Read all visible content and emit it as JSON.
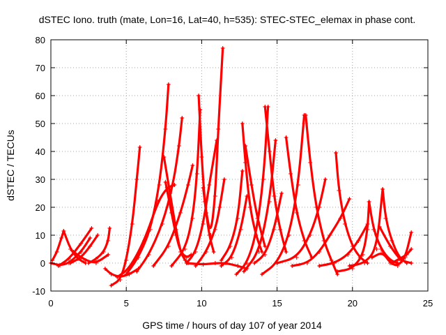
{
  "chart_data": {
    "type": "scatter",
    "title": "dSTEC Iono. truth (mate, Lon=16, Lat=40, h=535): STEC-STEC_elemax in phase cont.",
    "xlabel": "GPS time / hours of day 107 of year 2014",
    "ylabel": "dSTEC  / TECUs",
    "xlim": [
      0,
      25
    ],
    "ylim": [
      -10,
      80
    ],
    "xticks": [
      0,
      5,
      10,
      15,
      20,
      25
    ],
    "yticks": [
      -10,
      0,
      10,
      20,
      30,
      40,
      50,
      60,
      70,
      80
    ],
    "grid": true,
    "marker": "+",
    "color": "#ff0000",
    "series": [
      {
        "x": [
          0.1,
          0.4,
          0.7,
          0.85
        ],
        "y": [
          1,
          4,
          9,
          11.5
        ]
      },
      {
        "x": [
          0.85,
          1.3,
          1.8,
          2.3
        ],
        "y": [
          11.5,
          5,
          1.5,
          0
        ]
      },
      {
        "x": [
          0.0,
          0.6,
          1.2,
          2.0,
          2.6
        ],
        "y": [
          0,
          -0.8,
          0,
          4,
          9
        ]
      },
      {
        "x": [
          0.5,
          1.2,
          2.0,
          2.7
        ],
        "y": [
          -1,
          1.5,
          7,
          12.5
        ]
      },
      {
        "x": [
          1.3,
          2.0,
          2.6,
          3.1
        ],
        "y": [
          0,
          2,
          6,
          10
        ]
      },
      {
        "x": [
          1.5,
          2.3,
          3.0,
          3.8
        ],
        "y": [
          4,
          1,
          0,
          3
        ]
      },
      {
        "x": [
          2.5,
          3.0,
          3.5,
          3.8,
          3.9
        ],
        "y": [
          0,
          1.5,
          4,
          8,
          12.5
        ]
      },
      {
        "x": [
          3.6,
          4.0,
          4.6,
          5.2,
          5.8
        ],
        "y": [
          -2,
          -4,
          -5,
          -4,
          -2
        ]
      },
      {
        "x": [
          4.0,
          4.6,
          5.0,
          5.4,
          5.7,
          5.9
        ],
        "y": [
          -8,
          -6,
          1,
          14,
          30,
          41.5
        ]
      },
      {
        "x": [
          5.0,
          5.8,
          6.6,
          7.2,
          7.6,
          7.8
        ],
        "y": [
          -4,
          2,
          12,
          28,
          48,
          64
        ]
      },
      {
        "x": [
          4.4,
          5.2,
          6.2,
          7.1,
          7.7,
          8.2
        ],
        "y": [
          -5,
          -2,
          8,
          22,
          27,
          28
        ]
      },
      {
        "x": [
          5.7,
          6.5,
          7.4,
          8.1,
          8.5,
          8.7
        ],
        "y": [
          -3,
          3,
          14,
          28,
          42,
          52
        ]
      },
      {
        "x": [
          7.5,
          7.9,
          8.3,
          8.6,
          8.9,
          9.1
        ],
        "y": [
          38,
          25,
          12,
          4,
          1,
          0
        ]
      },
      {
        "x": [
          7.6,
          8.0,
          8.3,
          8.6,
          9.0,
          9.3
        ],
        "y": [
          29,
          18,
          10,
          4,
          2,
          3
        ]
      },
      {
        "x": [
          6.8,
          7.8,
          8.6,
          9.1,
          9.4
        ],
        "y": [
          -1,
          6,
          18,
          28,
          35
        ]
      },
      {
        "x": [
          8.0,
          8.9,
          9.4,
          9.7,
          9.9
        ],
        "y": [
          -1,
          5,
          16,
          32,
          55
        ]
      },
      {
        "x": [
          9.8,
          10.0,
          10.2,
          10.5,
          10.8
        ],
        "y": [
          60,
          38,
          22,
          10,
          4
        ]
      },
      {
        "x": [
          9.0,
          9.6,
          10.1,
          10.5,
          11.0
        ],
        "y": [
          0,
          4,
          14,
          28,
          44
        ]
      },
      {
        "x": [
          10.1,
          10.3,
          10.6,
          10.9,
          11.1,
          11.4
        ],
        "y": [
          27,
          18,
          10,
          24,
          48,
          77
        ]
      },
      {
        "x": [
          9.6,
          10.3,
          10.9,
          11.2,
          11.5
        ],
        "y": [
          -1,
          4,
          12,
          20,
          30
        ]
      },
      {
        "x": [
          9.0,
          10.1,
          10.9,
          11.6,
          12.4,
          13.0
        ],
        "y": [
          0,
          -0.5,
          0,
          0,
          -1,
          -2
        ]
      },
      {
        "x": [
          11.3,
          11.9,
          12.4,
          12.7
        ],
        "y": [
          1,
          6,
          16,
          33
        ]
      },
      {
        "x": [
          12.7,
          12.9,
          13.2,
          13.6,
          14.0
        ],
        "y": [
          50,
          36,
          20,
          10,
          4
        ]
      },
      {
        "x": [
          12.9,
          13.3,
          13.7,
          14.2
        ],
        "y": [
          42,
          28,
          16,
          6
        ]
      },
      {
        "x": [
          11.3,
          12.0,
          12.6,
          13.0
        ],
        "y": [
          -1,
          2,
          12,
          24
        ]
      },
      {
        "x": [
          12.3,
          13.0,
          13.6,
          14.1,
          14.4
        ],
        "y": [
          -4,
          0,
          10,
          30,
          56
        ]
      },
      {
        "x": [
          14.2,
          14.5,
          14.8,
          15.2,
          15.6
        ],
        "y": [
          56,
          40,
          24,
          12,
          4
        ]
      },
      {
        "x": [
          12.8,
          13.8,
          14.5,
          14.9
        ],
        "y": [
          -3,
          4,
          22,
          44
        ]
      },
      {
        "x": [
          13.5,
          14.2,
          14.8,
          15.3
        ],
        "y": [
          0,
          3,
          12,
          25
        ]
      },
      {
        "x": [
          15.6,
          15.9,
          16.3,
          16.8,
          17.3
        ],
        "y": [
          45,
          32,
          18,
          8,
          2
        ]
      },
      {
        "x": [
          14.0,
          15.0,
          15.8,
          16.4,
          16.8
        ],
        "y": [
          -4,
          0,
          10,
          28,
          53
        ]
      },
      {
        "x": [
          16.9,
          17.2,
          17.6,
          18.1,
          18.6,
          19.0
        ],
        "y": [
          53,
          36,
          20,
          8,
          1,
          -4
        ]
      },
      {
        "x": [
          15.0,
          16.3,
          17.2,
          17.8,
          18.2
        ],
        "y": [
          0,
          2,
          10,
          20,
          30
        ]
      },
      {
        "x": [
          16.0,
          17.0,
          17.8,
          18.5,
          19.2,
          19.8
        ],
        "y": [
          -1,
          0,
          4,
          10,
          16,
          23
        ]
      },
      {
        "x": [
          18.9,
          19.1,
          19.5,
          20.0,
          20.5,
          21.0
        ],
        "y": [
          39.5,
          26,
          14,
          6,
          2,
          0
        ]
      },
      {
        "x": [
          17.8,
          18.8,
          19.7,
          20.4,
          21.0
        ],
        "y": [
          -1,
          0,
          3,
          8,
          14
        ]
      },
      {
        "x": [
          19.0,
          20.0,
          20.7,
          21.0,
          21.1
        ],
        "y": [
          -3,
          -2,
          3,
          12,
          22
        ]
      },
      {
        "x": [
          21.1,
          21.4,
          21.9,
          22.5,
          23.0
        ],
        "y": [
          22,
          12,
          5,
          1,
          0
        ]
      },
      {
        "x": [
          19.8,
          20.8,
          21.6,
          22.0
        ],
        "y": [
          -1,
          0,
          5,
          26.5
        ]
      },
      {
        "x": [
          22.0,
          22.2,
          22.6,
          23.1,
          23.6
        ],
        "y": [
          26.5,
          16,
          8,
          2,
          0
        ]
      },
      {
        "x": [
          21.3,
          22.0,
          22.5,
          23.0,
          23.5,
          23.9
        ],
        "y": [
          2,
          4,
          0,
          -1,
          2,
          11
        ]
      },
      {
        "x": [
          21.8,
          22.5,
          23.2,
          23.9
        ],
        "y": [
          13,
          6,
          1,
          0
        ]
      },
      {
        "x": [
          22.6,
          23.1,
          23.6,
          23.9
        ],
        "y": [
          0,
          1.5,
          3,
          5
        ]
      }
    ]
  }
}
